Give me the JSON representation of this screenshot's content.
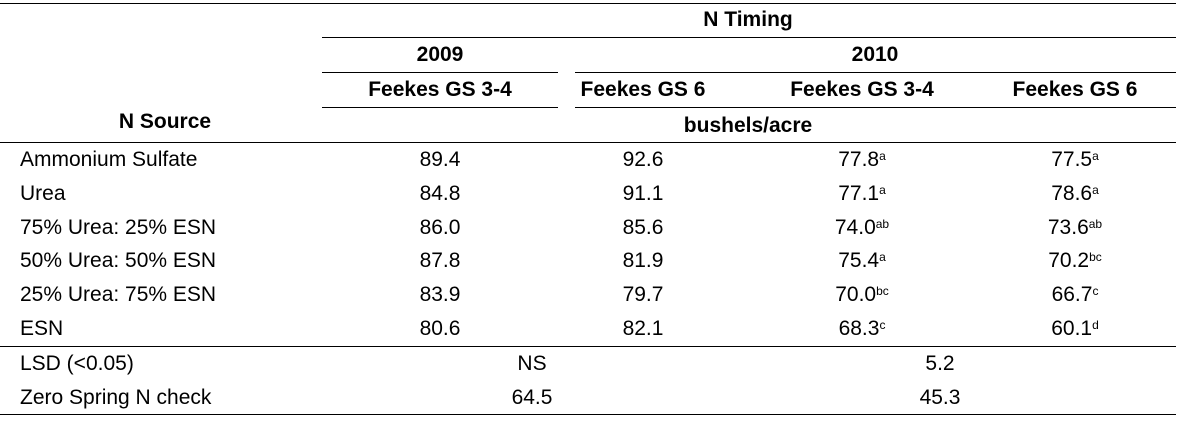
{
  "table": {
    "header": {
      "group": "N Timing",
      "years": [
        "2009",
        "2010"
      ],
      "stages": [
        "Feekes GS 3-4",
        "Feekes GS 6",
        "Feekes GS 3-4",
        "Feekes GS 6"
      ],
      "row_header": "N Source",
      "unit": "bushels/acre"
    },
    "rows": [
      {
        "label": "Ammonium Sulfate",
        "values": [
          {
            "value": "89.4"
          },
          {
            "value": "92.6"
          },
          {
            "value": "77.8",
            "sup": "a"
          },
          {
            "value": "77.5",
            "sup": "a"
          }
        ]
      },
      {
        "label": "Urea",
        "values": [
          {
            "value": "84.8"
          },
          {
            "value": "91.1"
          },
          {
            "value": "77.1",
            "sup": "a"
          },
          {
            "value": "78.6",
            "sup": "a"
          }
        ]
      },
      {
        "label": "75% Urea: 25% ESN",
        "values": [
          {
            "value": "86.0"
          },
          {
            "value": "85.6"
          },
          {
            "value": "74.0",
            "sup": "ab"
          },
          {
            "value": "73.6",
            "sup": "ab"
          }
        ]
      },
      {
        "label": "50% Urea: 50% ESN",
        "values": [
          {
            "value": "87.8"
          },
          {
            "value": "81.9"
          },
          {
            "value": "75.4",
            "sup": "a"
          },
          {
            "value": "70.2",
            "sup": "bc"
          }
        ]
      },
      {
        "label": "25% Urea: 75% ESN",
        "values": [
          {
            "value": "83.9"
          },
          {
            "value": "79.7"
          },
          {
            "value": "70.0",
            "sup": "bc"
          },
          {
            "value": "66.7",
            "sup": "c"
          }
        ]
      },
      {
        "label": "ESN",
        "values": [
          {
            "value": "80.6"
          },
          {
            "value": "82.1"
          },
          {
            "value": "68.3",
            "sup": "c"
          },
          {
            "value": "60.1",
            "sup": "d"
          }
        ]
      }
    ],
    "footer": [
      {
        "label": "LSD (<0.05)",
        "values": [
          "NS",
          "5.2"
        ]
      },
      {
        "label": "Zero Spring N check",
        "values": [
          "64.5",
          "45.3"
        ]
      }
    ]
  }
}
